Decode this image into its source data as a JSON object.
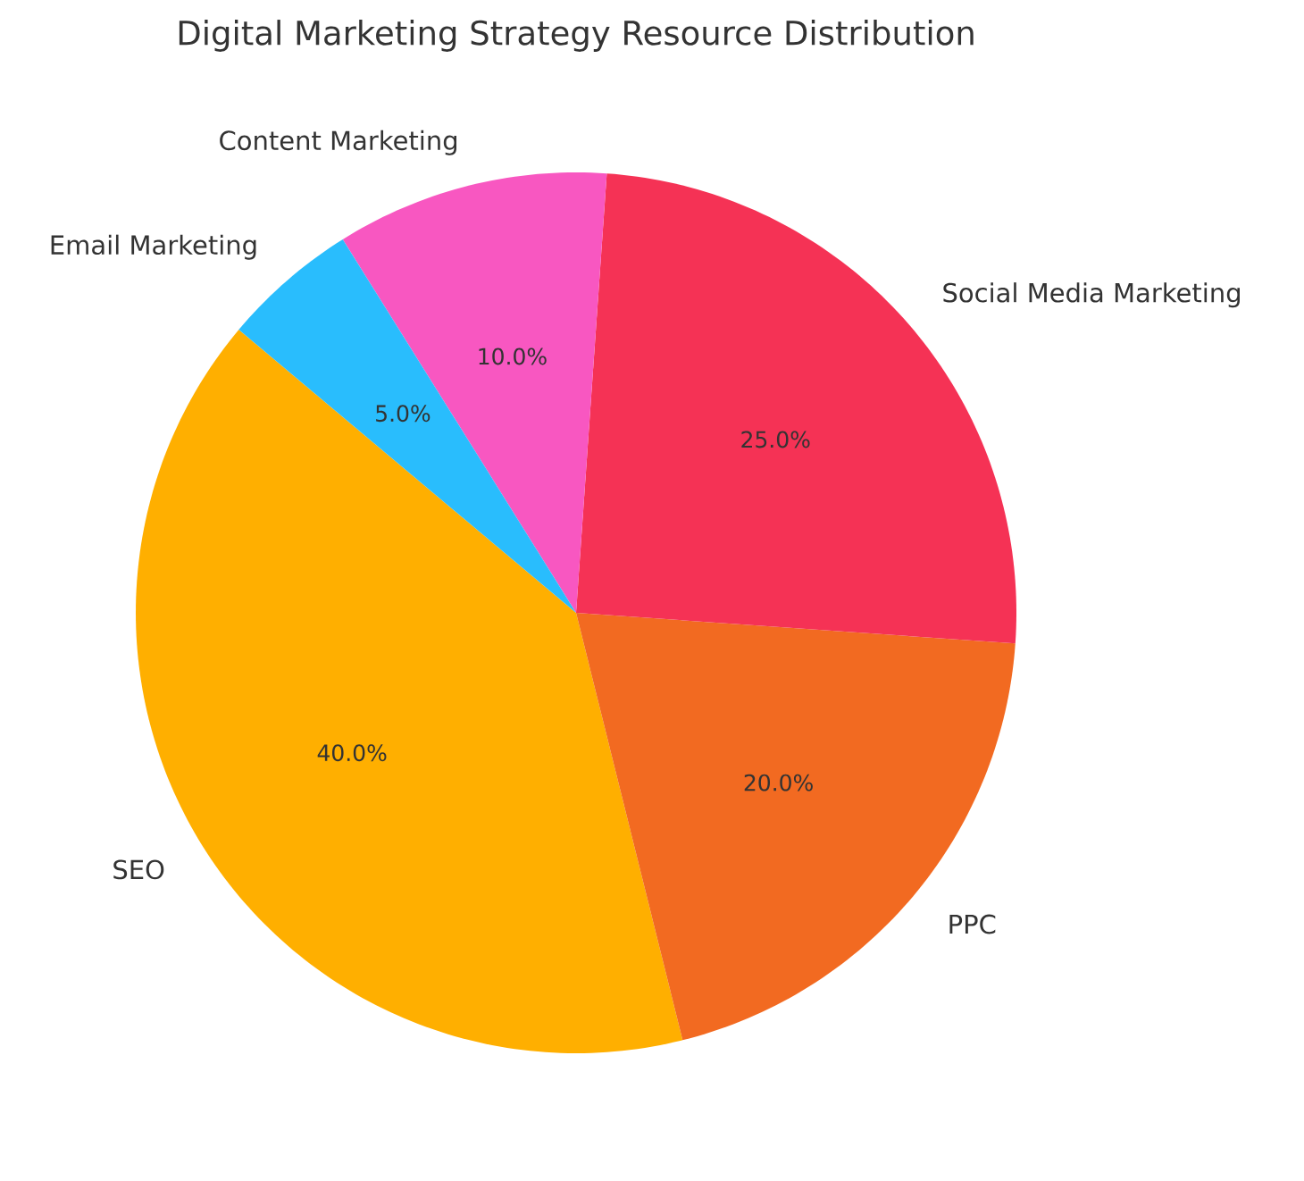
{
  "chart_data": {
    "type": "pie",
    "title": "Digital Marketing Strategy Resource Distribution",
    "categories": [
      "SEO",
      "PPC",
      "Social Media Marketing",
      "Content Marketing",
      "Email Marketing"
    ],
    "values": [
      40,
      20,
      25,
      10,
      5
    ],
    "value_labels": [
      "40.0%",
      "20.0%",
      "25.0%",
      "10.0%",
      "5.0%"
    ],
    "colors": [
      "#ffaf00",
      "#f26a21",
      "#f53255",
      "#f857c1",
      "#29bdfd"
    ]
  }
}
